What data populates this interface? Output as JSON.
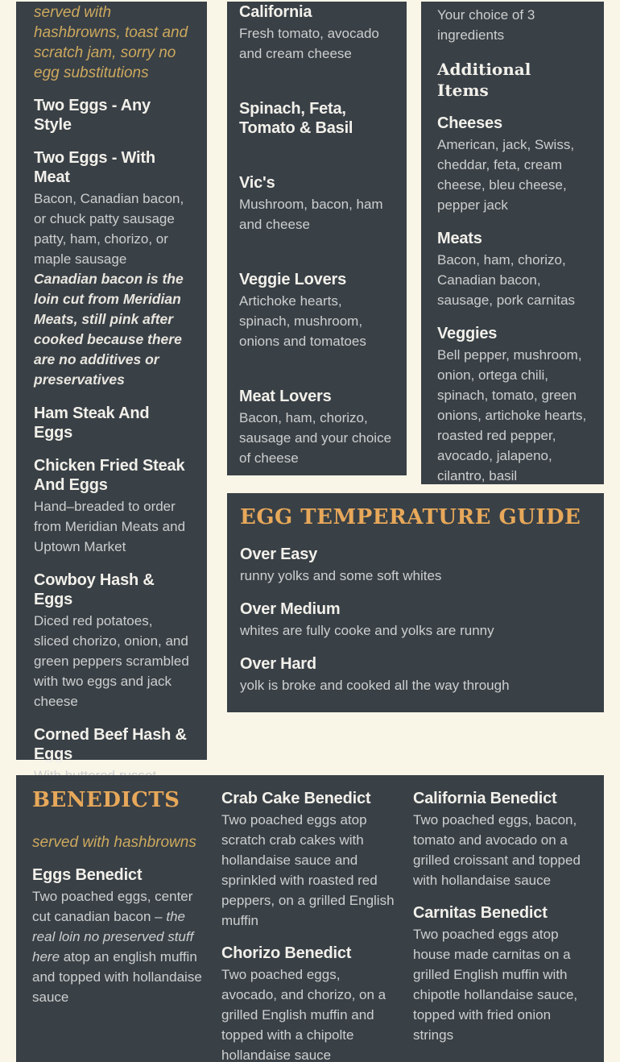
{
  "colors": {
    "background": "#f9f6e8",
    "card": "#394046",
    "accent_orange": "#e7a85a",
    "gold_italic": "#cda95e"
  },
  "breakfast": {
    "note": "served with hashbrowns, toast and scratch jam, sorry no egg substitutions",
    "items": [
      {
        "name": "Two Eggs - Any Style"
      },
      {
        "name": "Two Eggs - With Meat",
        "desc": "Bacon, Canadian bacon, or chuck patty sausage patty, ham, chorizo, or maple sausage",
        "note": "Canadian bacon is the loin cut from Meridian Meats, still pink after cooked because there are no additives or preservatives"
      },
      {
        "name": "Ham Steak And Eggs"
      },
      {
        "name": "Chicken Fried Steak And Eggs",
        "desc": "Hand–breaded to order from Meridian Meats and Uptown Market"
      },
      {
        "name": "Cowboy Hash & Eggs",
        "desc": "Diced red potatoes, sliced chorizo, onion, and green peppers scrambled with two eggs and jack cheese"
      },
      {
        "name": "Corned Beef Hash & Eggs",
        "desc": "With buttered russet potatoes, cooked on site from scratch"
      }
    ]
  },
  "omelettes": {
    "items": [
      {
        "name": "California",
        "desc": "Fresh tomato, avocado and cream cheese"
      },
      {
        "name": "Spinach, Feta, Tomato & Basil",
        "desc": ""
      },
      {
        "name": "Vic's",
        "desc": "Mushroom, bacon, ham and cheese"
      },
      {
        "name": "Veggie Lovers",
        "desc": "Artichoke hearts, spinach, mushroom, onions and tomatoes"
      },
      {
        "name": "Meat Lovers",
        "desc": "Bacon, ham, chorizo, sausage and your choice of cheese"
      }
    ]
  },
  "ingredients": {
    "intro": "Your choice of 3 ingredients",
    "heading": "Additional Items",
    "groups": [
      {
        "name": "Cheeses",
        "desc": "American, jack, Swiss, cheddar, feta, cream cheese, bleu cheese, pepper jack"
      },
      {
        "name": "Meats",
        "desc": "Bacon, ham, chorizo, Canadian bacon, sausage, pork carnitas"
      },
      {
        "name": "Veggies",
        "desc": "Bell pepper, mushroom, onion, ortega chili, spinach, tomato, green onions, artichoke hearts, roasted red pepper, avocado, jalapeno, cilantro, basil"
      }
    ]
  },
  "egg_guide": {
    "title": "EGG TEMPERATURE GUIDE",
    "items": [
      {
        "name": "Over Easy",
        "desc": "runny yolks and some soft whites"
      },
      {
        "name": "Over Medium",
        "desc": "whites are fully cooke and yolks are runny"
      },
      {
        "name": "Over Hard",
        "desc": "yolk is broke and cooked all the way through"
      }
    ]
  },
  "benedicts": {
    "title": "BENEDICTS",
    "note": "served with hashbrowns",
    "col1": [
      {
        "name": "Eggs Benedict",
        "desc_pre": "Two poached eggs, center cut canadian bacon – ",
        "desc_italic": "the real loin no preserved stuff here",
        "desc_post": " atop an english muffin and topped with hollandaise sauce"
      }
    ],
    "col2": [
      {
        "name": "Crab Cake Benedict",
        "desc": "Two poached eggs atop scratch crab cakes with hollandaise sauce and sprinkled with roasted red peppers, on a grilled English muffin"
      },
      {
        "name": "Chorizo Benedict",
        "desc": "Two poached eggs, avocado, and chorizo, on a grilled English muffin and topped with a chipolte hollandaise sauce"
      }
    ],
    "col3": [
      {
        "name": "California Benedict",
        "desc": "Two poached eggs, bacon, tomato and avocado on a grilled croissant and topped with hollandaise sauce"
      },
      {
        "name": "Carnitas Benedict",
        "desc": "Two poached eggs atop house made carnitas on a grilled English muffin with chipotle hollandaise sauce, topped with fried onion strings"
      }
    ]
  }
}
